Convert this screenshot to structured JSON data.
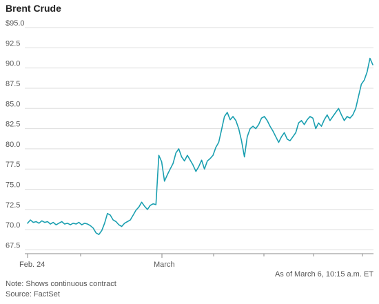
{
  "chart_data": {
    "type": "line",
    "title": "Brent Crude",
    "y_tick_labels": [
      "$95.0",
      "92.5",
      "90.0",
      "87.5",
      "85.0",
      "82.5",
      "80.0",
      "77.5",
      "75.0",
      "72.5",
      "70.0",
      "67.5"
    ],
    "y_ticks": [
      95.0,
      92.5,
      90.0,
      87.5,
      85.0,
      82.5,
      80.0,
      77.5,
      75.0,
      72.5,
      70.0,
      67.5
    ],
    "ylim": [
      67.5,
      95.0
    ],
    "x_tick_labels": [
      "Feb. 24",
      "March"
    ],
    "grid": "horizontal",
    "line_color": "#1a9fb0",
    "series": [
      {
        "values": [
          70.8,
          71.2,
          70.9,
          71.0,
          70.8,
          71.1,
          70.9,
          71.0,
          70.7,
          70.9,
          70.6,
          70.8,
          71.0,
          70.7,
          70.8,
          70.6,
          70.8,
          70.7,
          70.9,
          70.6,
          70.8,
          70.7,
          70.5,
          70.2,
          69.6,
          69.4,
          69.9,
          70.8,
          72.0,
          71.8,
          71.2,
          71.0,
          70.6,
          70.4,
          70.8,
          71.0,
          71.2,
          71.8,
          72.4,
          72.8,
          73.4,
          72.9,
          72.5,
          73.0,
          73.2,
          73.1,
          79.2,
          78.4,
          76.0,
          76.8,
          77.5,
          78.2,
          79.5,
          80.0,
          79.0,
          78.5,
          79.2,
          78.6,
          78.0,
          77.2,
          77.8,
          78.6,
          77.5,
          78.5,
          78.8,
          79.2,
          80.2,
          80.8,
          82.4,
          84.0,
          84.5,
          83.6,
          84.0,
          83.5,
          82.5,
          81.0,
          79.0,
          81.5,
          82.5,
          82.8,
          82.5,
          83.0,
          83.8,
          84.0,
          83.5,
          82.8,
          82.2,
          81.5,
          80.8,
          81.5,
          82.0,
          81.2,
          81.0,
          81.5,
          82.0,
          83.2,
          83.5,
          83.0,
          83.6,
          84.0,
          83.8,
          82.5,
          83.2,
          82.8,
          83.6,
          84.2,
          83.5,
          84.0,
          84.5,
          85.0,
          84.2,
          83.5,
          84.0,
          83.8,
          84.2,
          85.0,
          86.5,
          88.0,
          88.5,
          89.5,
          91.2,
          90.4
        ]
      }
    ],
    "as_of": "As of March 6, 10:15 a.m. ET",
    "note": "Note: Shows continuous contract",
    "source": "Source: FactSet"
  }
}
